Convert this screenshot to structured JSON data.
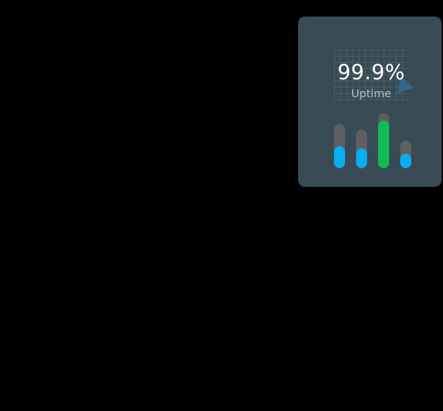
{
  "widget": {
    "value": "99.9%",
    "label": "Uptime",
    "accent_blue": "#08aef0",
    "accent_green": "#12bb55",
    "track_color": "#5d5f60",
    "bars": [
      {
        "level": 0.5,
        "color": "#08aef0"
      },
      {
        "level": 0.52,
        "color": "#08aef0"
      },
      {
        "level": 0.86,
        "color": "#12bb55"
      },
      {
        "level": 0.53,
        "color": "#08aef0"
      }
    ]
  }
}
